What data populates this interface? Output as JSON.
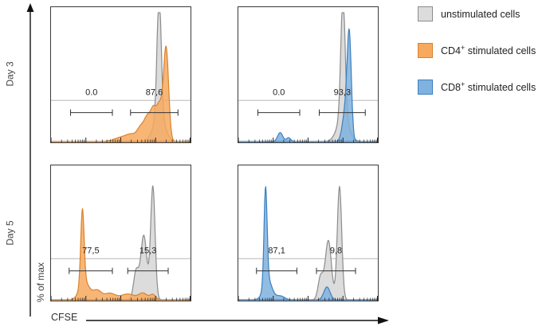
{
  "axes": {
    "x_label": "CFSE",
    "y_label": "% of max",
    "row_labels": [
      "Day 3",
      "Day 5"
    ]
  },
  "legend": {
    "items": [
      {
        "prefix": "unstimulated cells",
        "sup": "",
        "suffix": "",
        "fill": "#dcdcdc",
        "stroke": "#8c8c8c"
      },
      {
        "prefix": "CD4",
        "sup": "+",
        "suffix": " stimulated cells",
        "fill": "#f7a95e",
        "stroke": "#d9822b"
      },
      {
        "prefix": "CD8",
        "sup": "+",
        "suffix": " stimulated cells",
        "fill": "#7fb2de",
        "stroke": "#3d7fbf"
      }
    ]
  },
  "chart_data": [
    {
      "id": "day3-cd4",
      "type": "area",
      "row": "Day 3",
      "population": "CD4+ stimulated vs unstimulated",
      "x_axis": "CFSE (log scale, 4 decades)",
      "y_axis": "% of max",
      "ylim": [
        0,
        1
      ],
      "series": [
        {
          "name": "unstimulated cells",
          "fill": "#dcdcdc",
          "fill_opacity": 1,
          "stroke": "#8c8c8c",
          "peaks": [
            {
              "center": 0.775,
              "sigma": 0.015,
              "height": 0.95
            },
            {
              "center": 0.775,
              "sigma": 0.04,
              "height": 0.2
            }
          ]
        },
        {
          "name": "CD4+ stimulated cells",
          "fill": "#f7a95e",
          "fill_opacity": 0.85,
          "stroke": "#d9822b",
          "peaks": [
            {
              "center": 0.825,
              "sigma": 0.018,
              "height": 0.72
            },
            {
              "center": 0.78,
              "sigma": 0.02,
              "height": 0.26
            },
            {
              "center": 0.735,
              "sigma": 0.022,
              "height": 0.24
            },
            {
              "center": 0.69,
              "sigma": 0.022,
              "height": 0.16
            },
            {
              "center": 0.645,
              "sigma": 0.025,
              "height": 0.1
            },
            {
              "center": 0.58,
              "sigma": 0.04,
              "height": 0.05
            },
            {
              "center": 0.5,
              "sigma": 0.05,
              "height": 0.03
            }
          ]
        }
      ],
      "gates": [
        {
          "label": "0.0",
          "from": 0.14,
          "to": 0.44
        },
        {
          "label": "87,6",
          "from": 0.57,
          "to": 0.91
        }
      ]
    },
    {
      "id": "day3-cd8",
      "type": "area",
      "row": "Day 3",
      "population": "CD8+ stimulated vs unstimulated",
      "x_axis": "CFSE (log scale, 4 decades)",
      "y_axis": "% of max",
      "ylim": [
        0,
        1
      ],
      "series": [
        {
          "name": "unstimulated cells",
          "fill": "#dcdcdc",
          "fill_opacity": 1,
          "stroke": "#8c8c8c",
          "peaks": [
            {
              "center": 0.75,
              "sigma": 0.015,
              "height": 0.95
            },
            {
              "center": 0.75,
              "sigma": 0.04,
              "height": 0.2
            }
          ]
        },
        {
          "name": "CD8+ stimulated cells",
          "fill": "#7fb2de",
          "fill_opacity": 0.85,
          "stroke": "#3d7fbf",
          "peaks": [
            {
              "center": 0.795,
              "sigma": 0.015,
              "height": 0.8
            },
            {
              "center": 0.765,
              "sigma": 0.02,
              "height": 0.22
            },
            {
              "center": 0.3,
              "sigma": 0.018,
              "height": 0.07
            },
            {
              "center": 0.36,
              "sigma": 0.015,
              "height": 0.03
            }
          ]
        }
      ],
      "gates": [
        {
          "label": "0.0",
          "from": 0.14,
          "to": 0.44
        },
        {
          "label": "93,3",
          "from": 0.58,
          "to": 0.91
        }
      ]
    },
    {
      "id": "day5-cd4",
      "type": "area",
      "row": "Day 5",
      "population": "CD4+ stimulated vs unstimulated",
      "x_axis": "CFSE (log scale, 4 decades)",
      "y_axis": "% of max",
      "ylim": [
        0,
        1
      ],
      "series": [
        {
          "name": "unstimulated cells",
          "fill": "#dcdcdc",
          "fill_opacity": 1,
          "stroke": "#8c8c8c",
          "peaks": [
            {
              "center": 0.73,
              "sigma": 0.016,
              "height": 0.88
            },
            {
              "center": 0.665,
              "sigma": 0.022,
              "height": 0.5
            },
            {
              "center": 0.61,
              "sigma": 0.018,
              "height": 0.22
            }
          ]
        },
        {
          "name": "CD4+ stimulated cells",
          "fill": "#f7a95e",
          "fill_opacity": 0.85,
          "stroke": "#d9822b",
          "peaks": [
            {
              "center": 0.225,
              "sigma": 0.012,
              "height": 0.58
            },
            {
              "center": 0.24,
              "sigma": 0.035,
              "height": 0.14
            },
            {
              "center": 0.33,
              "sigma": 0.03,
              "height": 0.07
            },
            {
              "center": 0.42,
              "sigma": 0.04,
              "height": 0.05
            },
            {
              "center": 0.55,
              "sigma": 0.05,
              "height": 0.045
            },
            {
              "center": 0.66,
              "sigma": 0.03,
              "height": 0.05
            },
            {
              "center": 0.73,
              "sigma": 0.02,
              "height": 0.04
            }
          ]
        }
      ],
      "gates": [
        {
          "label": "77,5",
          "from": 0.13,
          "to": 0.44
        },
        {
          "label": "15,3",
          "from": 0.55,
          "to": 0.84
        }
      ]
    },
    {
      "id": "day5-cd8",
      "type": "area",
      "row": "Day 5",
      "population": "CD8+ stimulated vs unstimulated",
      "x_axis": "CFSE (log scale, 4 decades)",
      "y_axis": "% of max",
      "ylim": [
        0,
        1
      ],
      "series": [
        {
          "name": "unstimulated cells",
          "fill": "#dcdcdc",
          "fill_opacity": 1,
          "stroke": "#8c8c8c",
          "peaks": [
            {
              "center": 0.725,
              "sigma": 0.016,
              "height": 0.88
            },
            {
              "center": 0.645,
              "sigma": 0.022,
              "height": 0.46
            },
            {
              "center": 0.59,
              "sigma": 0.018,
              "height": 0.18
            }
          ]
        },
        {
          "name": "CD8+ stimulated cells",
          "fill": "#7fb2de",
          "fill_opacity": 0.85,
          "stroke": "#3d7fbf",
          "peaks": [
            {
              "center": 0.195,
              "sigma": 0.011,
              "height": 0.74
            },
            {
              "center": 0.21,
              "sigma": 0.03,
              "height": 0.16
            },
            {
              "center": 0.3,
              "sigma": 0.03,
              "height": 0.03
            },
            {
              "center": 0.635,
              "sigma": 0.022,
              "height": 0.1
            }
          ]
        }
      ],
      "gates": [
        {
          "label": "87,1",
          "from": 0.13,
          "to": 0.42
        },
        {
          "label": "9,8",
          "from": 0.56,
          "to": 0.84
        }
      ]
    }
  ]
}
